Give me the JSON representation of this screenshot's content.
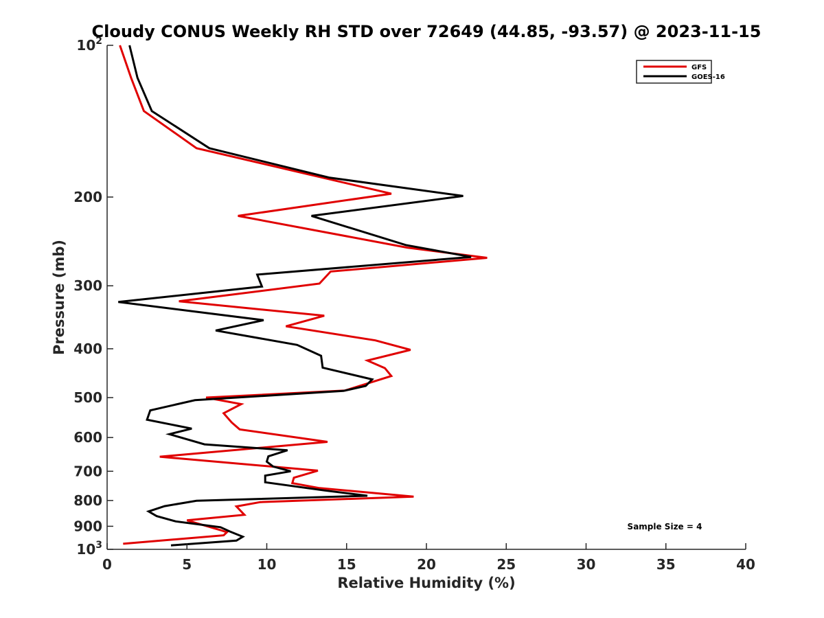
{
  "chart_data": {
    "type": "line",
    "title": "Cloudy CONUS Weekly RH STD over 72649 (44.85, -93.57) @ 2023-11-15",
    "xlabel": "Relative Humidity (%)",
    "ylabel": "Pressure (mb)",
    "xlim": [
      0,
      40
    ],
    "ylim": [
      100,
      1000
    ],
    "yscale": "log",
    "y_reversed": true,
    "x_ticks": [
      "0",
      "5",
      "10",
      "15",
      "20",
      "25",
      "30",
      "35",
      "40"
    ],
    "y_ticks": [
      {
        "value": 100,
        "label": "10",
        "sup": "2"
      },
      {
        "value": 200,
        "label": "200",
        "sup": ""
      },
      {
        "value": 300,
        "label": "300",
        "sup": ""
      },
      {
        "value": 400,
        "label": "400",
        "sup": ""
      },
      {
        "value": 500,
        "label": "500",
        "sup": ""
      },
      {
        "value": 600,
        "label": "600",
        "sup": ""
      },
      {
        "value": 700,
        "label": "700",
        "sup": ""
      },
      {
        "value": 800,
        "label": "800",
        "sup": ""
      },
      {
        "value": 900,
        "label": "900",
        "sup": ""
      },
      {
        "value": 1000,
        "label": "10",
        "sup": "3"
      }
    ],
    "legend_position": "top-right",
    "annotation": "Sample Size = 4",
    "series": [
      {
        "name": "GFS",
        "color": "#e00000",
        "points": [
          [
            0.8,
            100
          ],
          [
            1.5,
            116
          ],
          [
            2.3,
            135
          ],
          [
            5.6,
            160
          ],
          [
            17.8,
            197
          ],
          [
            8.2,
            218
          ],
          [
            18.8,
            252
          ],
          [
            23.8,
            264
          ],
          [
            14,
            281
          ],
          [
            13.3,
            297
          ],
          [
            4.5,
            322
          ],
          [
            13.6,
            344
          ],
          [
            11.2,
            361
          ],
          [
            16.8,
            385
          ],
          [
            19,
            402
          ],
          [
            16.3,
            422
          ],
          [
            17.4,
            437
          ],
          [
            17.8,
            453
          ],
          [
            14.9,
            484
          ],
          [
            6.2,
            500
          ],
          [
            8.4,
            515
          ],
          [
            7.3,
            537
          ],
          [
            7.8,
            560
          ],
          [
            8.3,
            578
          ],
          [
            13.8,
            612
          ],
          [
            3.3,
            655
          ],
          [
            13.2,
            698
          ],
          [
            11.7,
            721
          ],
          [
            11.6,
            739
          ],
          [
            13.3,
            756
          ],
          [
            19.2,
            786
          ],
          [
            9.6,
            806
          ],
          [
            8.1,
            822
          ],
          [
            8.6,
            854
          ],
          [
            5,
            876
          ],
          [
            7.1,
            916
          ],
          [
            7.5,
            925
          ],
          [
            7.3,
            938
          ],
          [
            1,
            975
          ]
        ]
      },
      {
        "name": "GOES-16",
        "color": "#000000",
        "points": [
          [
            1.4,
            100
          ],
          [
            1.9,
            116
          ],
          [
            2.8,
            135
          ],
          [
            6.4,
            160
          ],
          [
            13.9,
            183
          ],
          [
            22.3,
            199
          ],
          [
            12.8,
            218
          ],
          [
            18.7,
            249
          ],
          [
            22.8,
            263
          ],
          [
            9.4,
            285
          ],
          [
            9.7,
            301
          ],
          [
            0.7,
            323
          ],
          [
            9.8,
            351
          ],
          [
            6.8,
            368
          ],
          [
            11.9,
            393
          ],
          [
            13.4,
            413
          ],
          [
            13.5,
            436
          ],
          [
            16.6,
            460
          ],
          [
            16.2,
            474
          ],
          [
            14.8,
            485
          ],
          [
            5.5,
            506
          ],
          [
            2.7,
            530
          ],
          [
            2.5,
            553
          ],
          [
            5.3,
            576
          ],
          [
            3.9,
            591
          ],
          [
            6.1,
            619
          ],
          [
            11.3,
            636
          ],
          [
            10.1,
            654
          ],
          [
            10,
            670
          ],
          [
            10.4,
            685
          ],
          [
            11.5,
            700
          ],
          [
            9.9,
            714
          ],
          [
            9.9,
            736
          ],
          [
            13.6,
            764
          ],
          [
            16.3,
            783
          ],
          [
            5.6,
            801
          ],
          [
            3.6,
            821
          ],
          [
            2.6,
            841
          ],
          [
            3.1,
            859
          ],
          [
            4.3,
            880
          ],
          [
            7.1,
            904
          ],
          [
            7.7,
            922
          ],
          [
            8.5,
            944
          ],
          [
            8.1,
            961
          ],
          [
            4,
            982
          ]
        ]
      }
    ]
  }
}
